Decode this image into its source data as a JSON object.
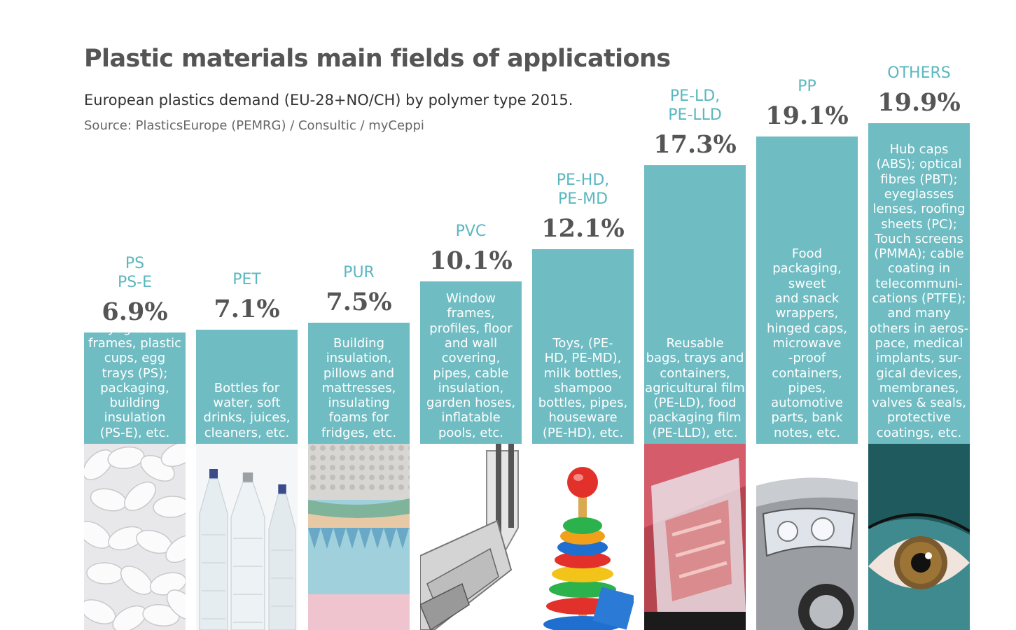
{
  "title": "Plastic materials main fields of applications",
  "subtitle": "European plastics demand (EU-28+NO/CH) by polymer type 2015.",
  "source": "Source: PlasticsEurope (PEMRG) / Consultic / myCeppi",
  "colors": {
    "bar": "#6fbcc2",
    "polymer_label": "#5ab7c0",
    "percent": "#555555",
    "title": "#555555"
  },
  "chart_data": {
    "type": "bar",
    "unit": "%",
    "ylim": [
      0,
      20
    ],
    "categories": [
      "PS\nPS-E",
      "PET",
      "PUR",
      "PVC",
      "PE-HD,\nPE-MD",
      "PE-LD,\nPE-LLD",
      "PP",
      "OTHERS"
    ],
    "values": [
      6.9,
      7.1,
      7.5,
      10.1,
      12.1,
      17.3,
      19.1,
      19.9
    ],
    "value_labels": [
      "6.9%",
      "7.1%",
      "7.5%",
      "10.1%",
      "12.1%",
      "17.3%",
      "19.1%",
      "19.9%"
    ],
    "applications": [
      "Eyeglasses\nframes, plastic\ncups, egg\ntrays (PS);\npackaging,\nbuilding\ninsulation\n(PS-E), etc.",
      "Bottles for\nwater, soft\ndrinks, juices,\ncleaners, etc.",
      "Building\ninsulation,\npillows and\nmattresses,\ninsulating\nfoams for\nfridges, etc.",
      "Window\nframes,\nprofiles, floor\nand wall\ncovering,\npipes, cable\ninsulation,\ngarden hoses,\ninflatable\npools, etc.",
      "Toys, (PE-\nHD, PE-MD),\nmilk bottles,\nshampoo\nbottles, pipes,\nhouseware\n(PE-HD), etc.",
      "Reusable\nbags, trays and\ncontainers,\nagricultural film\n(PE-LD), food\npackaging film\n(PE-LLD), etc.",
      "Food\npackaging,\nsweet\nand snack\nwrappers,\nhinged caps,\nmicrowave\n-proof\ncontainers,\npipes,\nautomotive\nparts, bank\nnotes, etc.",
      "Hub caps\n(ABS); optical\nfibres (PBT);\neyeglasses\nlenses, roofing\nsheets (PC);\nTouch screens\n(PMMA); cable\ncoating in\ntelecommuni-\ncations (PTFE);\nand many\nothers in aeros-\npace, medical\nimplants, sur-\ngical devices,\nmembranes,\nvalves & seals,\nprotective\ncoatings, etc."
    ],
    "photos": [
      "packaging-peanuts-photo",
      "water-bottles-photo",
      "mattress-foam-photo",
      "window-frame-profile-photo",
      "stacking-rings-toy-photo",
      "food-packaging-film-photo",
      "car-headlight-photo",
      "eye-photo"
    ]
  }
}
